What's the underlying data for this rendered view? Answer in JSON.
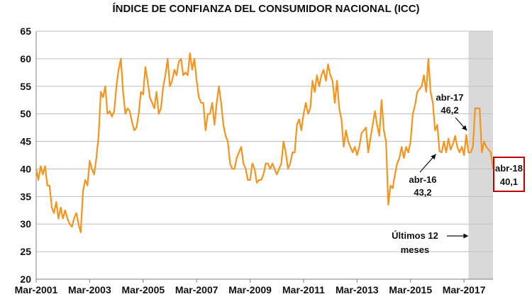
{
  "chart_data": {
    "type": "line",
    "title": "ÍNDICE DE CONFIANZA DEL CONSUMIDOR NACIONAL (ICC)",
    "xlabel": "",
    "ylabel": "",
    "ylim": [
      20,
      65
    ],
    "yticks": [
      20,
      25,
      30,
      35,
      40,
      45,
      50,
      55,
      60,
      65
    ],
    "xticks": [
      "Mar-2001",
      "Mar-2003",
      "Mar-2005",
      "Mar-2007",
      "Mar-2009",
      "Mar-2011",
      "Mar-2013",
      "Mar-2015",
      "Mar-2017"
    ],
    "x_start": "2001-03",
    "x_end": "2018-04",
    "grid": "horizontal",
    "legend": "none",
    "line_color": "#F7941D",
    "shade_color": "#D9D9D9",
    "shaded_range": [
      "2017-05",
      "2018-04"
    ],
    "shaded_label": [
      "Últimos 12",
      "meses"
    ],
    "annotations": [
      {
        "label": [
          "abr-16",
          "43,2"
        ],
        "date": "2016-04",
        "value": 43.2
      },
      {
        "label": [
          "abr-17",
          "46,2"
        ],
        "date": "2017-04",
        "value": 46.2
      },
      {
        "label": [
          "abr-18",
          "40,1"
        ],
        "date": "2018-04",
        "value": 40.1,
        "boxed": true
      }
    ],
    "series": [
      {
        "points": [
          [
            "2001-03",
            40
          ],
          [
            "2001-04",
            38
          ],
          [
            "2001-05",
            40.5
          ],
          [
            "2001-06",
            39
          ],
          [
            "2001-07",
            40.5
          ],
          [
            "2001-08",
            37
          ],
          [
            "2001-09",
            37
          ],
          [
            "2001-10",
            33
          ],
          [
            "2001-11",
            32
          ],
          [
            "2001-12",
            34
          ],
          [
            "2002-01",
            31
          ],
          [
            "2002-02",
            33
          ],
          [
            "2002-03",
            31
          ],
          [
            "2002-04",
            32.5
          ],
          [
            "2002-05",
            31
          ],
          [
            "2002-06",
            30
          ],
          [
            "2002-07",
            29.5
          ],
          [
            "2002-08",
            31
          ],
          [
            "2002-09",
            32
          ],
          [
            "2002-10",
            30
          ],
          [
            "2002-11",
            28.5
          ],
          [
            "2002-12",
            36
          ],
          [
            "2003-01",
            38
          ],
          [
            "2003-02",
            37
          ],
          [
            "2003-03",
            41.5
          ],
          [
            "2003-04",
            40
          ],
          [
            "2003-05",
            39
          ],
          [
            "2003-06",
            42
          ],
          [
            "2003-07",
            46
          ],
          [
            "2003-08",
            54
          ],
          [
            "2003-09",
            53
          ],
          [
            "2003-10",
            55
          ],
          [
            "2003-11",
            50
          ],
          [
            "2003-12",
            50.5
          ],
          [
            "2004-01",
            49.5
          ],
          [
            "2004-02",
            50.5
          ],
          [
            "2004-03",
            55
          ],
          [
            "2004-04",
            58
          ],
          [
            "2004-05",
            60
          ],
          [
            "2004-06",
            54
          ],
          [
            "2004-07",
            50
          ],
          [
            "2004-08",
            51
          ],
          [
            "2004-09",
            50.5
          ],
          [
            "2004-10",
            48.5
          ],
          [
            "2004-11",
            47
          ],
          [
            "2004-12",
            47.5
          ],
          [
            "2005-01",
            50
          ],
          [
            "2005-02",
            54
          ],
          [
            "2005-03",
            53.5
          ],
          [
            "2005-04",
            58.5
          ],
          [
            "2005-05",
            56
          ],
          [
            "2005-06",
            53
          ],
          [
            "2005-07",
            52
          ],
          [
            "2005-08",
            51
          ],
          [
            "2005-09",
            54
          ],
          [
            "2005-10",
            50
          ],
          [
            "2005-11",
            51
          ],
          [
            "2005-12",
            55
          ],
          [
            "2006-01",
            57
          ],
          [
            "2006-02",
            60
          ],
          [
            "2006-03",
            55
          ],
          [
            "2006-04",
            56
          ],
          [
            "2006-05",
            58
          ],
          [
            "2006-06",
            57
          ],
          [
            "2006-07",
            59.5
          ],
          [
            "2006-08",
            60
          ],
          [
            "2006-09",
            57
          ],
          [
            "2006-10",
            57.5
          ],
          [
            "2006-11",
            57
          ],
          [
            "2006-12",
            61
          ],
          [
            "2007-01",
            58
          ],
          [
            "2007-02",
            60
          ],
          [
            "2007-03",
            56
          ],
          [
            "2007-04",
            53
          ],
          [
            "2007-05",
            52
          ],
          [
            "2007-06",
            52
          ],
          [
            "2007-07",
            47
          ],
          [
            "2007-08",
            50
          ],
          [
            "2007-09",
            50
          ],
          [
            "2007-10",
            52
          ],
          [
            "2007-11",
            48
          ],
          [
            "2007-12",
            52
          ],
          [
            "2008-01",
            55
          ],
          [
            "2008-02",
            52
          ],
          [
            "2008-03",
            48
          ],
          [
            "2008-04",
            46
          ],
          [
            "2008-05",
            45
          ],
          [
            "2008-06",
            41
          ],
          [
            "2008-07",
            40
          ],
          [
            "2008-08",
            40
          ],
          [
            "2008-09",
            42
          ],
          [
            "2008-10",
            43
          ],
          [
            "2008-11",
            44
          ],
          [
            "2008-12",
            41
          ],
          [
            "2009-01",
            40
          ],
          [
            "2009-02",
            38
          ],
          [
            "2009-03",
            38
          ],
          [
            "2009-04",
            41
          ],
          [
            "2009-05",
            40
          ],
          [
            "2009-06",
            37.5
          ],
          [
            "2009-07",
            38
          ],
          [
            "2009-08",
            38
          ],
          [
            "2009-09",
            39
          ],
          [
            "2009-10",
            41
          ],
          [
            "2009-11",
            41
          ],
          [
            "2009-12",
            40
          ],
          [
            "2010-01",
            41
          ],
          [
            "2010-02",
            40
          ],
          [
            "2010-03",
            39
          ],
          [
            "2010-04",
            40
          ],
          [
            "2010-05",
            41
          ],
          [
            "2010-06",
            45
          ],
          [
            "2010-07",
            43
          ],
          [
            "2010-08",
            40
          ],
          [
            "2010-09",
            41
          ],
          [
            "2010-10",
            43
          ],
          [
            "2010-11",
            43
          ],
          [
            "2010-12",
            48
          ],
          [
            "2011-01",
            49
          ],
          [
            "2011-02",
            47
          ],
          [
            "2011-03",
            50
          ],
          [
            "2011-04",
            52
          ],
          [
            "2011-05",
            50
          ],
          [
            "2011-06",
            51
          ],
          [
            "2011-07",
            56
          ],
          [
            "2011-08",
            54
          ],
          [
            "2011-09",
            57
          ],
          [
            "2011-10",
            55
          ],
          [
            "2011-11",
            57
          ],
          [
            "2011-12",
            58
          ],
          [
            "2012-01",
            56
          ],
          [
            "2012-02",
            59
          ],
          [
            "2012-03",
            57
          ],
          [
            "2012-04",
            56
          ],
          [
            "2012-05",
            52
          ],
          [
            "2012-06",
            56
          ],
          [
            "2012-07",
            51
          ],
          [
            "2012-08",
            49
          ],
          [
            "2012-09",
            44
          ],
          [
            "2012-10",
            47
          ],
          [
            "2012-11",
            45
          ],
          [
            "2012-12",
            44
          ],
          [
            "2013-01",
            43
          ],
          [
            "2013-02",
            44
          ],
          [
            "2013-03",
            42.5
          ],
          [
            "2013-04",
            44
          ],
          [
            "2013-05",
            46.5
          ],
          [
            "2013-06",
            47
          ],
          [
            "2013-07",
            47.5
          ],
          [
            "2013-08",
            43
          ],
          [
            "2013-09",
            45.5
          ],
          [
            "2013-10",
            48
          ],
          [
            "2013-11",
            50.5
          ],
          [
            "2013-12",
            48
          ],
          [
            "2014-01",
            46
          ],
          [
            "2014-02",
            52.5
          ],
          [
            "2014-03",
            47
          ],
          [
            "2014-04",
            45
          ],
          [
            "2014-05",
            33.5
          ],
          [
            "2014-06",
            37
          ],
          [
            "2014-07",
            36.5
          ],
          [
            "2014-08",
            39
          ],
          [
            "2014-09",
            41
          ],
          [
            "2014-10",
            42
          ],
          [
            "2014-11",
            44
          ],
          [
            "2014-12",
            42
          ],
          [
            "2015-01",
            44
          ],
          [
            "2015-02",
            43
          ],
          [
            "2015-03",
            45
          ],
          [
            "2015-04",
            50
          ],
          [
            "2015-05",
            51.5
          ],
          [
            "2015-06",
            54
          ],
          [
            "2015-07",
            54.5
          ],
          [
            "2015-08",
            55
          ],
          [
            "2015-09",
            57
          ],
          [
            "2015-10",
            54
          ],
          [
            "2015-11",
            60
          ],
          [
            "2015-12",
            54
          ],
          [
            "2016-01",
            52
          ],
          [
            "2016-02",
            47
          ],
          [
            "2016-03",
            48
          ],
          [
            "2016-04",
            43.2
          ],
          [
            "2016-05",
            43
          ],
          [
            "2016-06",
            45
          ],
          [
            "2016-07",
            43
          ],
          [
            "2016-08",
            45.5
          ],
          [
            "2016-09",
            43.5
          ],
          [
            "2016-10",
            44.5
          ],
          [
            "2016-11",
            46
          ],
          [
            "2016-12",
            44
          ],
          [
            "2017-01",
            43
          ],
          [
            "2017-02",
            44
          ],
          [
            "2017-03",
            42.5
          ],
          [
            "2017-04",
            46.2
          ],
          [
            "2017-05",
            43
          ],
          [
            "2017-06",
            43
          ],
          [
            "2017-07",
            44
          ],
          [
            "2017-08",
            51
          ],
          [
            "2017-09",
            51
          ],
          [
            "2017-10",
            51
          ],
          [
            "2017-11",
            43
          ],
          [
            "2017-12",
            45
          ],
          [
            "2018-01",
            44
          ],
          [
            "2018-02",
            43.5
          ],
          [
            "2018-03",
            43
          ],
          [
            "2018-04",
            40.1
          ]
        ]
      }
    ]
  }
}
